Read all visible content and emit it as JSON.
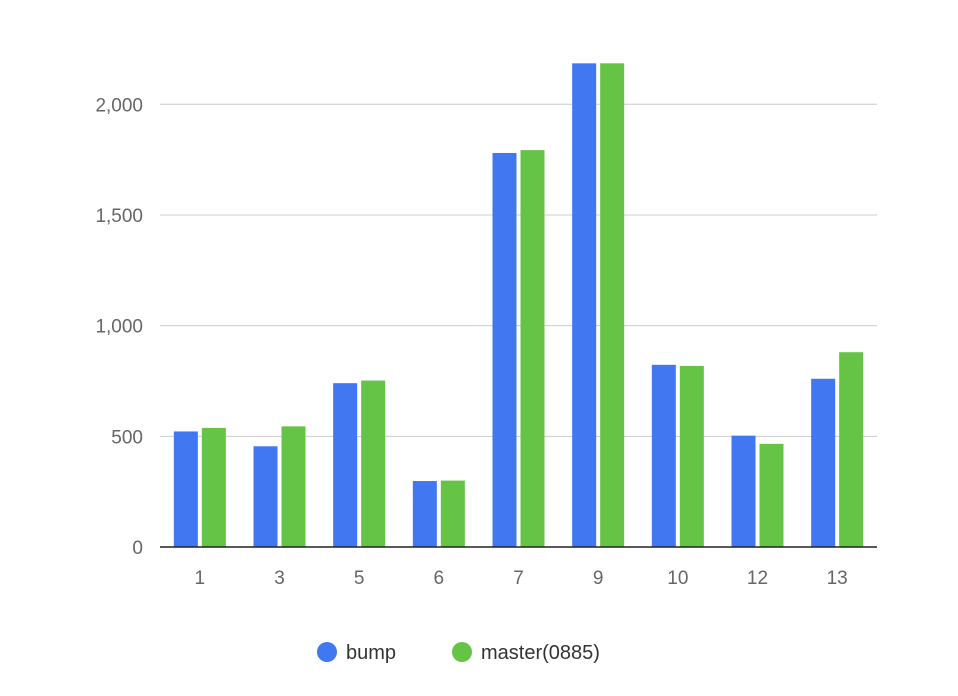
{
  "chart_data": {
    "type": "bar",
    "categories": [
      "1",
      "3",
      "5",
      "6",
      "7",
      "9",
      "10",
      "12",
      "13"
    ],
    "series": [
      {
        "name": "bump",
        "color": "#4177f0",
        "values": [
          522,
          455,
          740,
          298,
          1780,
          2185,
          823,
          503,
          760
        ]
      },
      {
        "name": "master(0885)",
        "color": "#65c346",
        "values": [
          538,
          545,
          752,
          300,
          1793,
          2185,
          818,
          466,
          880
        ]
      }
    ],
    "y_ticks": [
      {
        "value": 0,
        "label": "0"
      },
      {
        "value": 500,
        "label": "500"
      },
      {
        "value": 1000,
        "label": "1,000"
      },
      {
        "value": 1500,
        "label": "1,500"
      },
      {
        "value": 2000,
        "label": "2,000"
      }
    ],
    "ylim": [
      0,
      2200
    ],
    "grid": true,
    "legend_position": "bottom"
  }
}
